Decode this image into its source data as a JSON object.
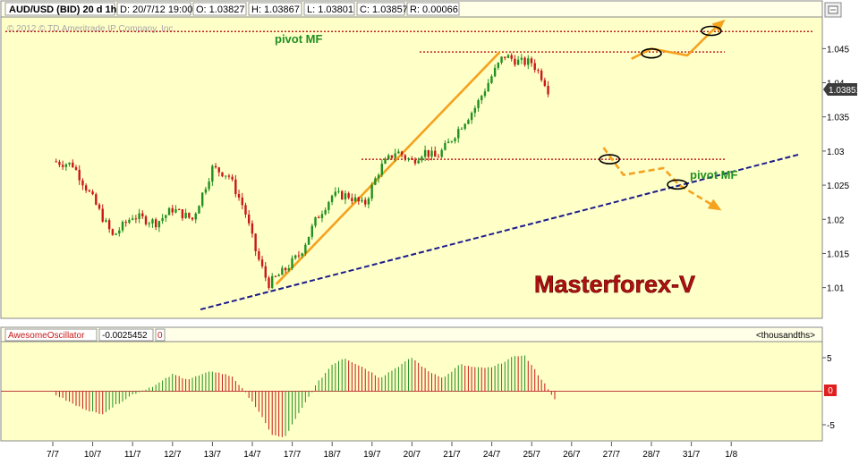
{
  "header": {
    "symbol": "AUD/USD (BID) 20 d 1h",
    "date": "D: 20/7/12 19:00",
    "open": "O: 1.03827",
    "high": "H: 1.03867",
    "low": "L: 1.03801",
    "close": "C: 1.03857",
    "range": "R: 0.00066"
  },
  "copyright": "© 2012 © TD Ameritrade IP Company, Inc.",
  "annotations": {
    "pivot_top": "pivot MF",
    "pivot_right": "pivot MF",
    "brand": "Masterforex-V"
  },
  "colors": {
    "panel_bg": "#ffffc8",
    "header_bg": "#ffffe8",
    "bull": "#209020",
    "bear": "#c81818",
    "trend_orange": "#f5a21e",
    "trend_navy": "#1c1c8c",
    "pivot_red": "#c02020",
    "pivot_green": "#209020",
    "brand_red": "#b01010",
    "price_box": "#3c3c3c",
    "zero_box": "#e02020"
  },
  "chart_data": [
    {
      "type": "candlestick",
      "title": "AUD/USD (BID) 20 d 1h",
      "ylim": [
        1.0055,
        1.0495
      ],
      "y_ticks": [
        "1.045",
        "1.04",
        "1.035",
        "1.03",
        "1.025",
        "1.02",
        "1.015",
        "1.01"
      ],
      "x_ticks": [
        "7/7",
        "10/7",
        "11/7",
        "12/7",
        "13/7",
        "14/7",
        "17/7",
        "18/7",
        "19/7",
        "20/7",
        "21/7",
        "24/7",
        "25/7",
        "26/7",
        "27/7",
        "28/7",
        "31/7",
        "1/8"
      ],
      "last_price": "1.03851",
      "price_anchors": [
        [
          0,
          1.0285
        ],
        [
          0.5,
          1.028
        ],
        [
          1.0,
          1.023
        ],
        [
          1.5,
          1.0175
        ],
        [
          2.0,
          1.0205
        ],
        [
          2.6,
          1.0195
        ],
        [
          3.0,
          1.0215
        ],
        [
          3.5,
          1.02
        ],
        [
          4.0,
          1.0275
        ],
        [
          4.4,
          1.0265
        ],
        [
          4.8,
          1.0215
        ],
        [
          5.1,
          1.015
        ],
        [
          5.4,
          1.0105
        ],
        [
          5.8,
          1.0125
        ],
        [
          6.2,
          1.015
        ],
        [
          6.6,
          1.02
        ],
        [
          7.0,
          1.0235
        ],
        [
          7.4,
          1.0235
        ],
        [
          7.8,
          1.022
        ],
        [
          8.2,
          1.0275
        ],
        [
          8.6,
          1.03
        ],
        [
          9.0,
          1.0285
        ],
        [
          9.3,
          1.03
        ],
        [
          9.6,
          1.029
        ],
        [
          9.9,
          1.031
        ],
        [
          10.2,
          1.0335
        ],
        [
          10.6,
          1.0365
        ],
        [
          11.0,
          1.041
        ],
        [
          11.3,
          1.044
        ],
        [
          11.7,
          1.043
        ],
        [
          12.0,
          1.043
        ],
        [
          12.3,
          1.0405
        ],
        [
          12.45,
          1.0385
        ]
      ],
      "pivot_levels": [
        1.0475,
        1.0445,
        1.0288
      ],
      "trendlines": [
        {
          "name": "orange-uptrend",
          "points": [
            [
              5.6,
              1.0105
            ],
            [
              11.2,
              1.0445
            ]
          ]
        },
        {
          "name": "navy-support",
          "points": [
            [
              3.7,
              1.0068
            ],
            [
              18.7,
              1.0295
            ]
          ]
        }
      ],
      "scenario_up": [
        [
          14.5,
          1.0435
        ],
        [
          15.0,
          1.045
        ],
        [
          15.9,
          1.044
        ],
        [
          16.5,
          1.0475
        ],
        [
          16.8,
          1.049
        ]
      ],
      "scenario_down": [
        [
          13.8,
          1.0305
        ],
        [
          14.3,
          1.0265
        ],
        [
          15.3,
          1.0275
        ],
        [
          15.7,
          1.025
        ],
        [
          16.7,
          1.0215
        ]
      ],
      "ellipses": [
        [
          15.0,
          1.0443
        ],
        [
          16.5,
          1.0476
        ],
        [
          13.95,
          1.0288
        ],
        [
          15.65,
          1.0251
        ]
      ]
    },
    {
      "type": "bar",
      "title": "AwesomeOscillator",
      "value_label": "-0.0025452",
      "second_label": "0",
      "units_label": "<thousandths>",
      "ylim": [
        -7.4,
        7.4
      ],
      "y_ticks": [
        "5",
        "-5"
      ],
      "zero_label": "0",
      "ao_anchors": [
        [
          0,
          -0.3
        ],
        [
          0.6,
          -2.2
        ],
        [
          1.2,
          -3.5
        ],
        [
          1.6,
          -2.0
        ],
        [
          2.0,
          -0.5
        ],
        [
          2.6,
          1.0
        ],
        [
          3.0,
          2.5
        ],
        [
          3.4,
          1.8
        ],
        [
          4.0,
          3.0
        ],
        [
          4.5,
          2.2
        ],
        [
          5.0,
          -1.5
        ],
        [
          5.5,
          -6.5
        ],
        [
          5.8,
          -7.0
        ],
        [
          6.2,
          -3.0
        ],
        [
          6.6,
          1.0
        ],
        [
          7.0,
          4.0
        ],
        [
          7.3,
          5.0
        ],
        [
          7.8,
          3.5
        ],
        [
          8.2,
          2.0
        ],
        [
          8.6,
          3.5
        ],
        [
          9.0,
          5.0
        ],
        [
          9.4,
          3.0
        ],
        [
          9.8,
          2.0
        ],
        [
          10.2,
          4.0
        ],
        [
          10.6,
          3.5
        ],
        [
          11.0,
          3.5
        ],
        [
          11.5,
          5.0
        ],
        [
          11.8,
          5.5
        ],
        [
          12.1,
          3.0
        ],
        [
          12.4,
          0.5
        ],
        [
          12.6,
          -1.5
        ]
      ]
    }
  ]
}
